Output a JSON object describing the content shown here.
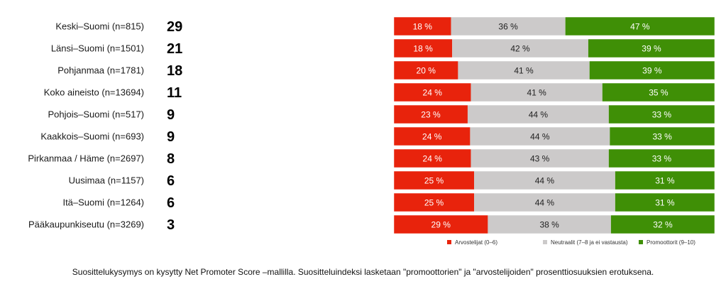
{
  "chart_data": {
    "type": "bar",
    "stacked": true,
    "orientation": "horizontal",
    "categories": [
      "Keski–Suomi (n=815)",
      "Länsi–Suomi (n=1501)",
      "Pohjanmaa (n=1781)",
      "Koko aineisto (n=13694)",
      "Pohjois–Suomi (n=517)",
      "Kaakkois–Suomi (n=693)",
      "Pirkanmaa / Häme (n=2697)",
      "Uusimaa (n=1157)",
      "Itä–Suomi (n=1264)",
      "Pääkaupunkiseutu (n=3269)"
    ],
    "nps": [
      29,
      21,
      18,
      11,
      9,
      9,
      8,
      6,
      6,
      3
    ],
    "series": [
      {
        "name": "Arvostelijat (0–6)",
        "color": "#e8230c",
        "values": [
          18,
          18,
          20,
          24,
          23,
          24,
          24,
          25,
          25,
          29
        ]
      },
      {
        "name": "Neutraalit (7–8 ja ei vastausta)",
        "color": "#cccaca",
        "values": [
          36,
          42,
          41,
          41,
          44,
          44,
          43,
          44,
          44,
          38
        ]
      },
      {
        "name": "Promoottorit (9–10)",
        "color": "#3f8f06",
        "values": [
          47,
          39,
          39,
          35,
          33,
          33,
          33,
          31,
          31,
          32
        ]
      }
    ],
    "value_suffix": " %",
    "legend_position": "bottom",
    "grid": false
  },
  "footnote": "Suosittelukysymys on kysytty Net Promoter Score –mallilla. Suositteluindeksi lasketaan \"promoottorien\" ja \"arvostelijoiden\" prosenttiosuuksien erotuksena."
}
